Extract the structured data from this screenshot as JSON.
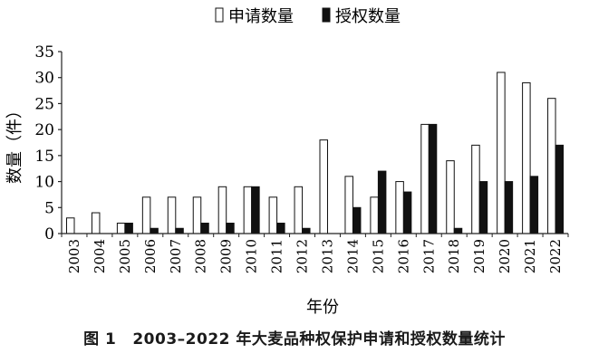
{
  "chart_data": {
    "type": "bar",
    "categories": [
      "2003",
      "2004",
      "2005",
      "2006",
      "2007",
      "2008",
      "2009",
      "2010",
      "2011",
      "2012",
      "2013",
      "2014",
      "2015",
      "2016",
      "2017",
      "2018",
      "2019",
      "2020",
      "2021",
      "2022"
    ],
    "series": [
      {
        "name": "申请数量",
        "values": [
          3,
          4,
          2,
          7,
          7,
          7,
          9,
          9,
          7,
          9,
          18,
          11,
          7,
          10,
          21,
          14,
          17,
          31,
          29,
          26
        ],
        "color": "#ffffff"
      },
      {
        "name": "授权数量",
        "values": [
          0,
          0,
          2,
          1,
          1,
          2,
          2,
          9,
          2,
          1,
          0,
          5,
          12,
          8,
          21,
          1,
          10,
          10,
          11,
          17
        ],
        "color": "#111111"
      }
    ],
    "xlabel": "年份",
    "ylabel": "数量（件）",
    "yticks": [
      "0",
      "5",
      "10",
      "15",
      "20",
      "25",
      "30",
      "35"
    ],
    "ylim": [
      0,
      35
    ],
    "legend_position": "top-center",
    "grid": false
  },
  "caption": {
    "figure_no": "图 1",
    "text": "2003–2022 年大麦品种权保护申请和授权数量统计"
  }
}
